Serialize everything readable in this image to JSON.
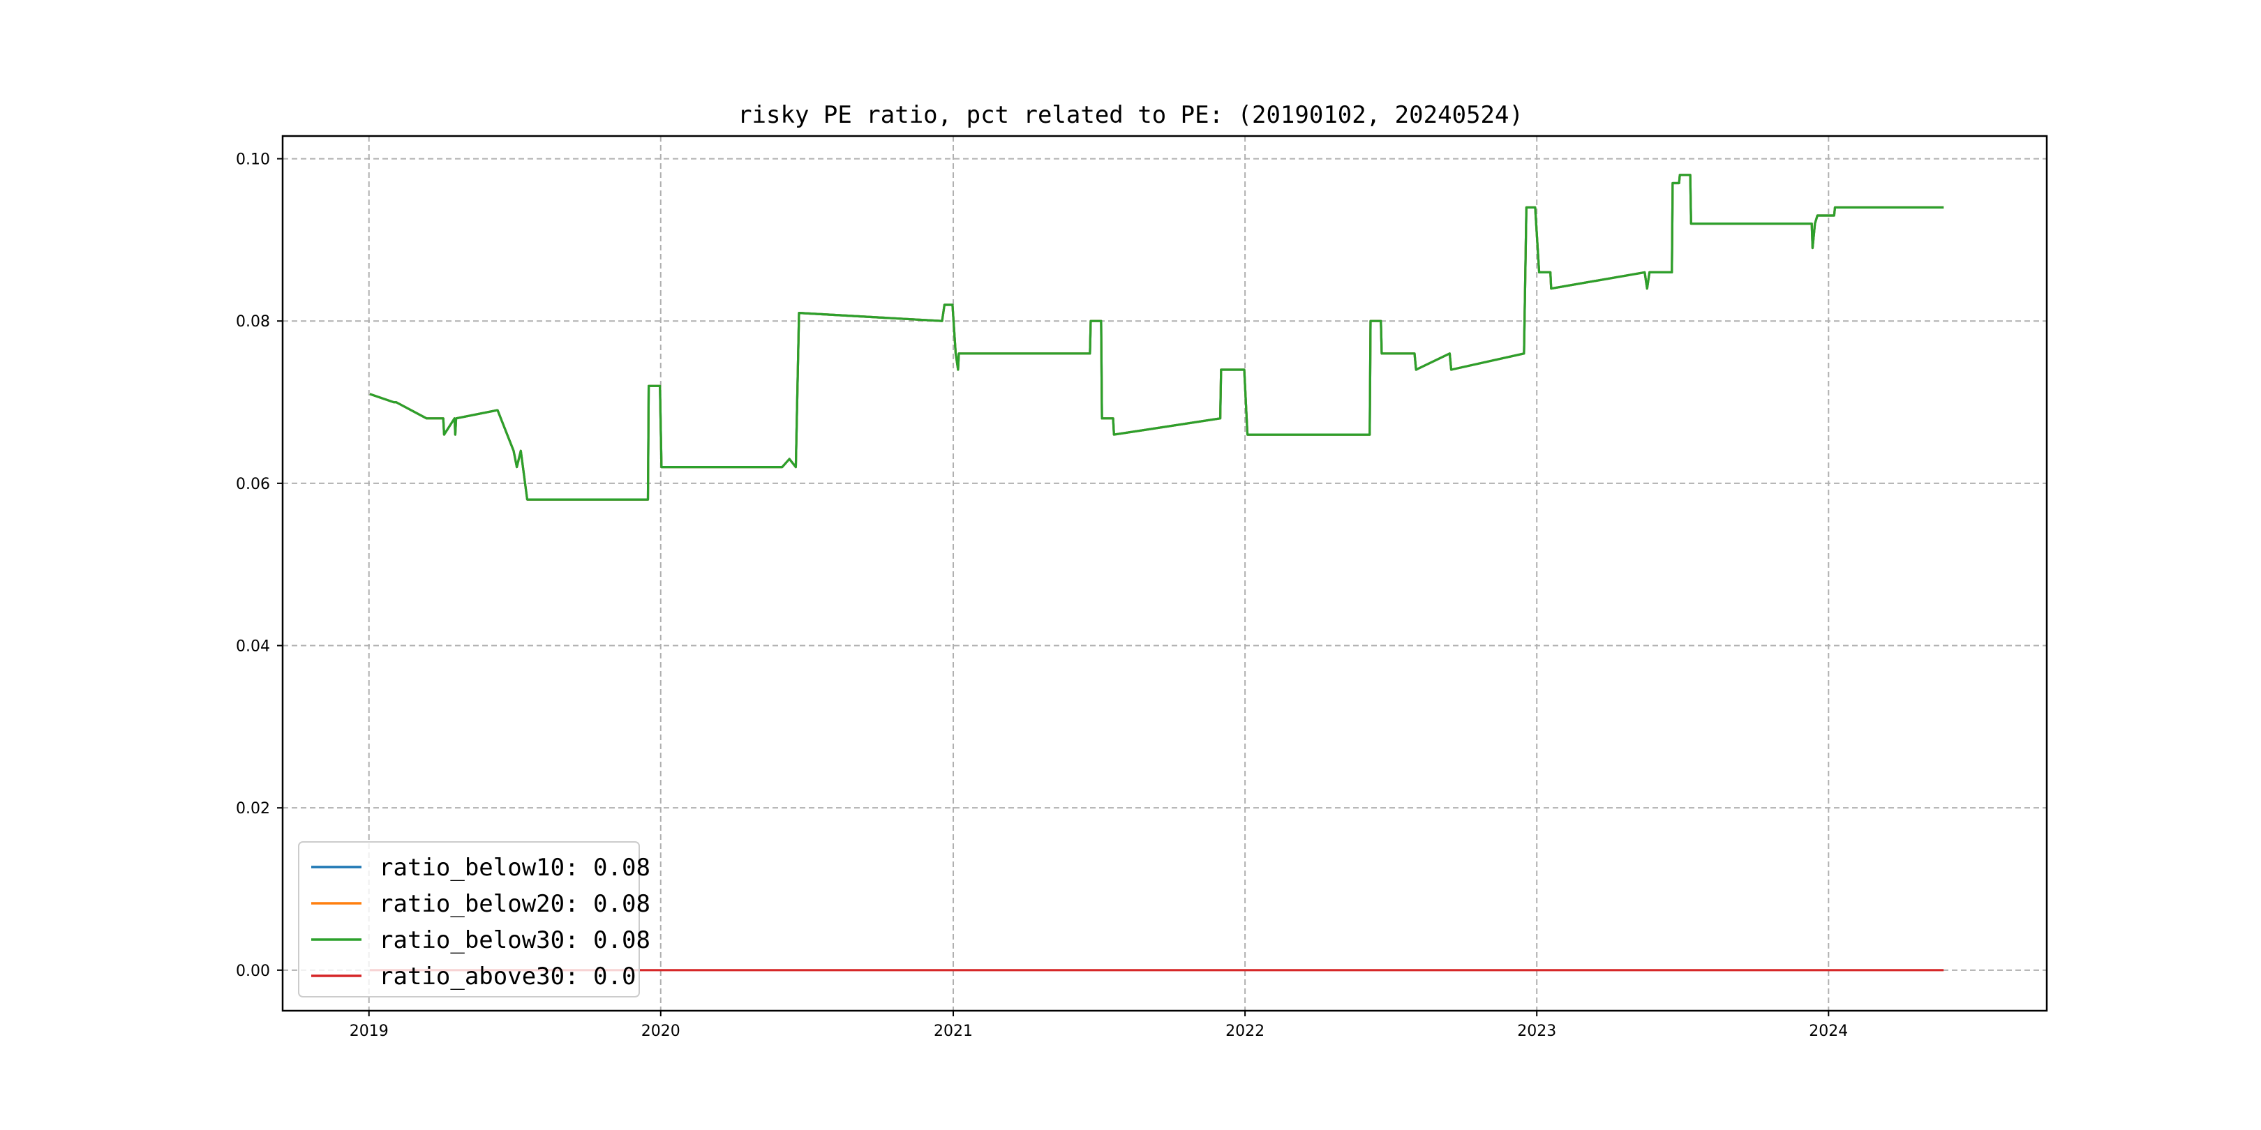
{
  "chart_data": {
    "type": "line",
    "title": "risky PE ratio, pct related to PE: (20190102, 20240524)",
    "xlabel": "",
    "ylabel": "",
    "xlim": [
      "2018-09-15",
      "2024-09-30"
    ],
    "ylim": [
      -0.005,
      0.1028
    ],
    "x_ticks": [
      "2019",
      "2020",
      "2021",
      "2022",
      "2023",
      "2024"
    ],
    "y_ticks": [
      "0.00",
      "0.02",
      "0.04",
      "0.06",
      "0.08",
      "0.10"
    ],
    "grid": true,
    "legend_position": "lower-left",
    "series": [
      {
        "name": "ratio_below10: 0.08",
        "color": "#1f77b4",
        "x": [
          "2019-01-02",
          "2019-02-01",
          "2019-02-04",
          "2019-03-14",
          "2019-04-01",
          "2019-04-04",
          "2019-04-05",
          "2019-04-18",
          "2019-04-19",
          "2019-04-20",
          "2019-06-10",
          "2019-06-11",
          "2019-07-01",
          "2019-07-05",
          "2019-07-10",
          "2019-07-18",
          "2019-12-16",
          "2019-12-17",
          "2019-12-31",
          "2020-01-02",
          "2020-06-01",
          "2020-06-10",
          "2020-06-18",
          "2020-06-22",
          "2020-12-18",
          "2020-12-21",
          "2020-12-31",
          "2021-01-04",
          "2021-01-07",
          "2021-01-08",
          "2021-06-21",
          "2021-06-22",
          "2021-07-05",
          "2021-07-06",
          "2021-07-20",
          "2021-07-21",
          "2021-12-01",
          "2021-12-02",
          "2021-12-31",
          "2022-01-04",
          "2022-06-06",
          "2022-06-07",
          "2022-06-20",
          "2022-06-21",
          "2022-08-01",
          "2022-08-03",
          "2022-09-14",
          "2022-09-16",
          "2022-12-16",
          "2022-12-19",
          "2022-12-30",
          "2023-01-04",
          "2023-01-18",
          "2023-01-19",
          "2023-05-16",
          "2023-05-19",
          "2023-05-22",
          "2023-06-19",
          "2023-06-20",
          "2023-06-28",
          "2023-06-29",
          "2023-07-12",
          "2023-07-13",
          "2023-12-11",
          "2023-12-12",
          "2023-12-15",
          "2023-12-18",
          "2023-12-21",
          "2024-01-08",
          "2024-01-09",
          "2024-05-24"
        ],
        "y": [
          0.071,
          0.07,
          0.07,
          0.068,
          0.068,
          0.068,
          0.066,
          0.068,
          0.066,
          0.068,
          0.069,
          0.069,
          0.064,
          0.062,
          0.064,
          0.058,
          0.058,
          0.072,
          0.072,
          0.062,
          0.062,
          0.063,
          0.062,
          0.081,
          0.08,
          0.082,
          0.082,
          0.076,
          0.074,
          0.076,
          0.076,
          0.08,
          0.08,
          0.068,
          0.068,
          0.066,
          0.068,
          0.074,
          0.074,
          0.066,
          0.066,
          0.08,
          0.08,
          0.076,
          0.076,
          0.074,
          0.076,
          0.074,
          0.076,
          0.094,
          0.094,
          0.086,
          0.086,
          0.084,
          0.086,
          0.084,
          0.086,
          0.086,
          0.097,
          0.097,
          0.098,
          0.098,
          0.092,
          0.092,
          0.089,
          0.092,
          0.093,
          0.093,
          0.093,
          0.094,
          0.094
        ]
      },
      {
        "name": "ratio_below20: 0.08",
        "color": "#ff7f0e",
        "x": [
          "2019-01-02",
          "2019-02-01",
          "2019-02-04",
          "2019-03-14",
          "2019-04-01",
          "2019-04-04",
          "2019-04-05",
          "2019-04-18",
          "2019-04-19",
          "2019-04-20",
          "2019-06-10",
          "2019-06-11",
          "2019-07-01",
          "2019-07-05",
          "2019-07-10",
          "2019-07-18",
          "2019-12-16",
          "2019-12-17",
          "2019-12-31",
          "2020-01-02",
          "2020-06-01",
          "2020-06-10",
          "2020-06-18",
          "2020-06-22",
          "2020-12-18",
          "2020-12-21",
          "2020-12-31",
          "2021-01-04",
          "2021-01-07",
          "2021-01-08",
          "2021-06-21",
          "2021-06-22",
          "2021-07-05",
          "2021-07-06",
          "2021-07-20",
          "2021-07-21",
          "2021-12-01",
          "2021-12-02",
          "2021-12-31",
          "2022-01-04",
          "2022-06-06",
          "2022-06-07",
          "2022-06-20",
          "2022-06-21",
          "2022-08-01",
          "2022-08-03",
          "2022-09-14",
          "2022-09-16",
          "2022-12-16",
          "2022-12-19",
          "2022-12-30",
          "2023-01-04",
          "2023-01-18",
          "2023-01-19",
          "2023-05-16",
          "2023-05-19",
          "2023-05-22",
          "2023-06-19",
          "2023-06-20",
          "2023-06-28",
          "2023-06-29",
          "2023-07-12",
          "2023-07-13",
          "2023-12-11",
          "2023-12-12",
          "2023-12-15",
          "2023-12-18",
          "2023-12-21",
          "2024-01-08",
          "2024-01-09",
          "2024-05-24"
        ],
        "y": [
          0.071,
          0.07,
          0.07,
          0.068,
          0.068,
          0.068,
          0.066,
          0.068,
          0.066,
          0.068,
          0.069,
          0.069,
          0.064,
          0.062,
          0.064,
          0.058,
          0.058,
          0.072,
          0.072,
          0.062,
          0.062,
          0.063,
          0.062,
          0.081,
          0.08,
          0.082,
          0.082,
          0.076,
          0.074,
          0.076,
          0.076,
          0.08,
          0.08,
          0.068,
          0.068,
          0.066,
          0.068,
          0.074,
          0.074,
          0.066,
          0.066,
          0.08,
          0.08,
          0.076,
          0.076,
          0.074,
          0.076,
          0.074,
          0.076,
          0.094,
          0.094,
          0.086,
          0.086,
          0.084,
          0.086,
          0.084,
          0.086,
          0.086,
          0.097,
          0.097,
          0.098,
          0.098,
          0.092,
          0.092,
          0.089,
          0.092,
          0.093,
          0.093,
          0.093,
          0.094,
          0.094
        ]
      },
      {
        "name": "ratio_below30: 0.08",
        "color": "#2ca02c",
        "x": [
          "2019-01-02",
          "2019-02-01",
          "2019-02-04",
          "2019-03-14",
          "2019-04-01",
          "2019-04-04",
          "2019-04-05",
          "2019-04-18",
          "2019-04-19",
          "2019-04-20",
          "2019-06-10",
          "2019-06-11",
          "2019-07-01",
          "2019-07-05",
          "2019-07-10",
          "2019-07-18",
          "2019-12-16",
          "2019-12-17",
          "2019-12-31",
          "2020-01-02",
          "2020-06-01",
          "2020-06-10",
          "2020-06-18",
          "2020-06-22",
          "2020-12-18",
          "2020-12-21",
          "2020-12-31",
          "2021-01-04",
          "2021-01-07",
          "2021-01-08",
          "2021-06-21",
          "2021-06-22",
          "2021-07-05",
          "2021-07-06",
          "2021-07-20",
          "2021-07-21",
          "2021-12-01",
          "2021-12-02",
          "2021-12-31",
          "2022-01-04",
          "2022-06-06",
          "2022-06-07",
          "2022-06-20",
          "2022-06-21",
          "2022-08-01",
          "2022-08-03",
          "2022-09-14",
          "2022-09-16",
          "2022-12-16",
          "2022-12-19",
          "2022-12-30",
          "2023-01-04",
          "2023-01-18",
          "2023-01-19",
          "2023-05-16",
          "2023-05-19",
          "2023-05-22",
          "2023-06-19",
          "2023-06-20",
          "2023-06-28",
          "2023-06-29",
          "2023-07-12",
          "2023-07-13",
          "2023-12-11",
          "2023-12-12",
          "2023-12-15",
          "2023-12-18",
          "2023-12-21",
          "2024-01-08",
          "2024-01-09",
          "2024-05-24"
        ],
        "y": [
          0.071,
          0.07,
          0.07,
          0.068,
          0.068,
          0.068,
          0.066,
          0.068,
          0.066,
          0.068,
          0.069,
          0.069,
          0.064,
          0.062,
          0.064,
          0.058,
          0.058,
          0.072,
          0.072,
          0.062,
          0.062,
          0.063,
          0.062,
          0.081,
          0.08,
          0.082,
          0.082,
          0.076,
          0.074,
          0.076,
          0.076,
          0.08,
          0.08,
          0.068,
          0.068,
          0.066,
          0.068,
          0.074,
          0.074,
          0.066,
          0.066,
          0.08,
          0.08,
          0.076,
          0.076,
          0.074,
          0.076,
          0.074,
          0.076,
          0.094,
          0.094,
          0.086,
          0.086,
          0.084,
          0.086,
          0.084,
          0.086,
          0.086,
          0.097,
          0.097,
          0.098,
          0.098,
          0.092,
          0.092,
          0.089,
          0.092,
          0.093,
          0.093,
          0.093,
          0.094,
          0.094
        ]
      },
      {
        "name": "ratio_above30: 0.0",
        "color": "#d62728",
        "x": [
          "2019-01-02",
          "2024-05-24"
        ],
        "y": [
          0.0,
          0.0
        ]
      }
    ]
  }
}
